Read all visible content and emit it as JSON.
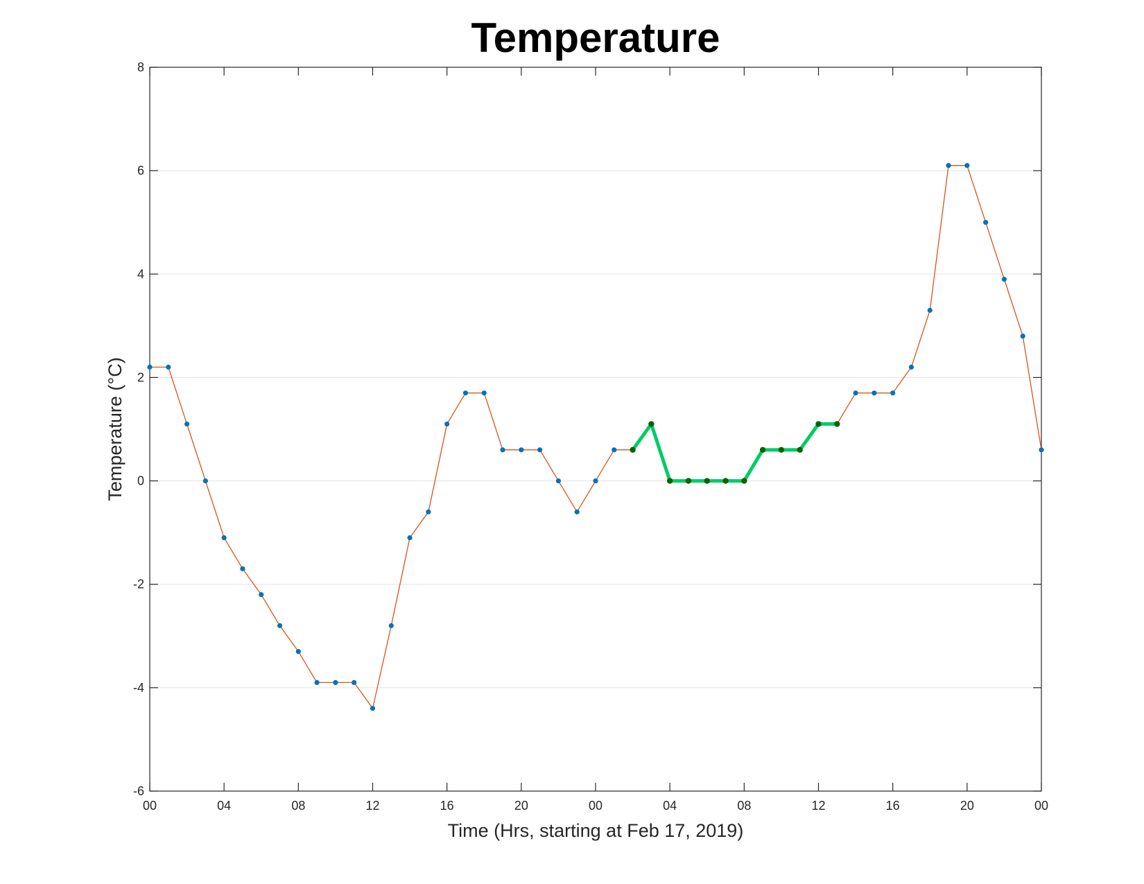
{
  "chart_data": {
    "type": "line",
    "title": "Temperature",
    "xlabel": "Time (Hrs, starting at Feb 17, 2019)",
    "ylabel": "Temperature (°C)",
    "xlim": [
      0,
      48
    ],
    "ylim": [
      -6,
      8
    ],
    "grid": "horizontal",
    "x_ticks": [
      0,
      4,
      8,
      12,
      16,
      20,
      24,
      28,
      32,
      36,
      40,
      44,
      48
    ],
    "x_tick_labels": [
      "00",
      "04",
      "08",
      "12",
      "16",
      "20",
      "00",
      "04",
      "08",
      "12",
      "16",
      "20",
      "00"
    ],
    "y_ticks": [
      -6,
      -4,
      -2,
      0,
      2,
      4,
      6,
      8
    ],
    "y_tick_labels": [
      "-6",
      "-4",
      "-2",
      "0",
      "2",
      "4",
      "6",
      "8"
    ],
    "series": [
      {
        "line_color": "#d95319",
        "marker_color": "#0072bd",
        "x": [
          0,
          1,
          2,
          3,
          4,
          5,
          6,
          7,
          8,
          9,
          10,
          11,
          12,
          13,
          14,
          15,
          16,
          17,
          18,
          19,
          20,
          21,
          22,
          23,
          24,
          25,
          26,
          27,
          28,
          29,
          30,
          31,
          32,
          33,
          34,
          35,
          36,
          37,
          38,
          39,
          40,
          41,
          42,
          43,
          44,
          45,
          46,
          47,
          48
        ],
        "values": [
          2.2,
          2.2,
          1.1,
          0,
          -1.1,
          -1.7,
          -2.2,
          -2.8,
          -3.3,
          -3.9,
          -3.9,
          -3.9,
          -4.4,
          -2.8,
          -1.1,
          -0.6,
          1.1,
          1.7,
          1.7,
          0.6,
          0.6,
          0.6,
          0,
          -0.6,
          0,
          0.6,
          0.6,
          1.1,
          0,
          0,
          0,
          0,
          0,
          0.6,
          0.6,
          0.6,
          1.1,
          1.1,
          1.7,
          1.7,
          1.7,
          2.2,
          3.3,
          6.1,
          6.1,
          5.0,
          3.9,
          2.8,
          0.6
        ]
      },
      {
        "line_color": "#00cc66",
        "marker_color": "#006400",
        "x": [
          26,
          27,
          28,
          29,
          30,
          31,
          32,
          33,
          34,
          35,
          36,
          37
        ],
        "values": [
          0.6,
          1.1,
          0,
          0,
          0,
          0,
          0,
          0.6,
          0.6,
          0.6,
          1.1,
          1.1
        ]
      }
    ]
  }
}
